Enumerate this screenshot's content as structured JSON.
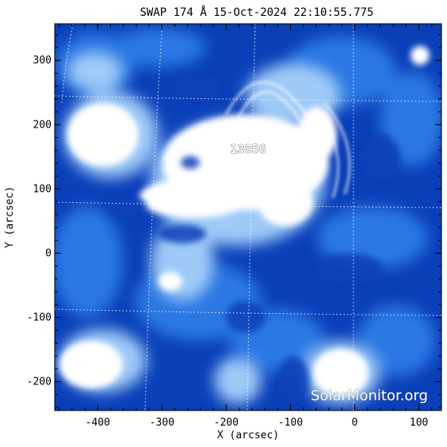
{
  "figure": {
    "title": "SWAP 174 Å 15-Oct-2024 22:10:55.775",
    "region_label": "13856",
    "watermark": "SolarMonitor.org",
    "x_axis": {
      "label": "X (arcsec)",
      "ticks": [
        "-400",
        "-300",
        "-200",
        "-100",
        "0",
        "100"
      ],
      "tick_values": [
        -400,
        -300,
        -200,
        -100,
        0,
        100
      ],
      "range": [
        -467,
        135
      ]
    },
    "y_axis": {
      "label": "Y (arcsec)",
      "ticks": [
        "-200",
        "-100",
        "0",
        "100",
        "200",
        "300"
      ],
      "tick_values": [
        -200,
        -100,
        0,
        100,
        200,
        300
      ],
      "range": [
        -245,
        357
      ]
    },
    "colors": {
      "deep": "#0a3fb8",
      "mid": "#2f7ee8",
      "light": "#9fcaf7",
      "bright": "#ffffff"
    }
  }
}
